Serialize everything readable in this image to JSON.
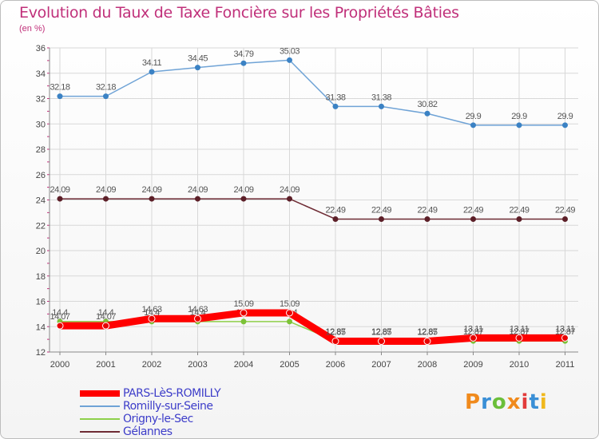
{
  "chart_data": {
    "type": "line",
    "title": "Evolution du Taux de Taxe Foncière sur les Propriétés Bâties",
    "subtitle": "(en %)",
    "x": [
      "2000",
      "2001",
      "2002",
      "2003",
      "2004",
      "2005",
      "2006",
      "2007",
      "2008",
      "2009",
      "2010",
      "2011"
    ],
    "ylim": [
      12,
      36
    ],
    "yticks": [
      "12",
      "14",
      "16",
      "18",
      "20",
      "22",
      "24",
      "26",
      "28",
      "30",
      "32",
      "34",
      "36"
    ],
    "grid": true,
    "legend_position": "bottom-left",
    "series": [
      {
        "name": "Romilly-sur-Seine",
        "color": "#6fa3d6",
        "marker": "#3b82c4",
        "values": [
          32.18,
          32.18,
          34.11,
          34.45,
          34.79,
          35.03,
          31.38,
          31.38,
          30.82,
          29.9,
          29.9,
          29.9
        ],
        "labels": [
          "32.18",
          "32.18",
          "34.11",
          "34.45",
          "34.79",
          "35.03",
          "31.38",
          "31.38",
          "30.82",
          "29.9",
          "29.9",
          "29.9"
        ]
      },
      {
        "name": "Gélannes",
        "color": "#6e2b34",
        "marker": "#5c1f28",
        "values": [
          24.09,
          24.09,
          24.09,
          24.09,
          24.09,
          24.09,
          22.49,
          22.49,
          22.49,
          22.49,
          22.49,
          22.49
        ],
        "labels": [
          "24.09",
          "24.09",
          "24.09",
          "24.09",
          "24.09",
          "24.09",
          "22.49",
          "22.49",
          "22.49",
          "22.49",
          "22.49",
          "22.49"
        ]
      },
      {
        "name": "Origny-le-Sec",
        "color": "#8ed04a",
        "marker": "#7cc238",
        "values": [
          14.4,
          14.4,
          14.4,
          14.4,
          14.4,
          14.4,
          12.87,
          12.87,
          12.87,
          12.87,
          12.87,
          12.87
        ],
        "labels": [
          "14.4",
          "14.4",
          "14.4",
          "14.4",
          "14.4",
          "14.4",
          "12.87",
          "12.87",
          "12.87",
          "12.87",
          "12.87",
          "12.87"
        ]
      },
      {
        "name": "PARS-LèS-ROMILLY",
        "color": "#ff0000",
        "marker": "#e80000",
        "values": [
          14.07,
          14.07,
          14.63,
          14.63,
          15.09,
          15.09,
          12.85,
          12.85,
          12.85,
          13.11,
          13.11,
          13.11
        ],
        "labels": [
          "14.07",
          "14.07",
          "14.63",
          "14.63",
          "15.09",
          "15.09",
          "12.85",
          "12.85",
          "12.85",
          "13.11",
          "13.11",
          "13.11"
        ]
      }
    ]
  },
  "legend": [
    {
      "label": "PARS-LèS-ROMILLY",
      "color": "#ff0000",
      "weight": "thick"
    },
    {
      "label": "Romilly-sur-Seine",
      "color": "#6fa3d6",
      "weight": "thin"
    },
    {
      "label": "Origny-le-Sec",
      "color": "#8ed04a",
      "weight": "thin"
    },
    {
      "label": "Gélannes",
      "color": "#6e2b34",
      "weight": "thin"
    }
  ],
  "brand": {
    "text": "Proxiti"
  }
}
